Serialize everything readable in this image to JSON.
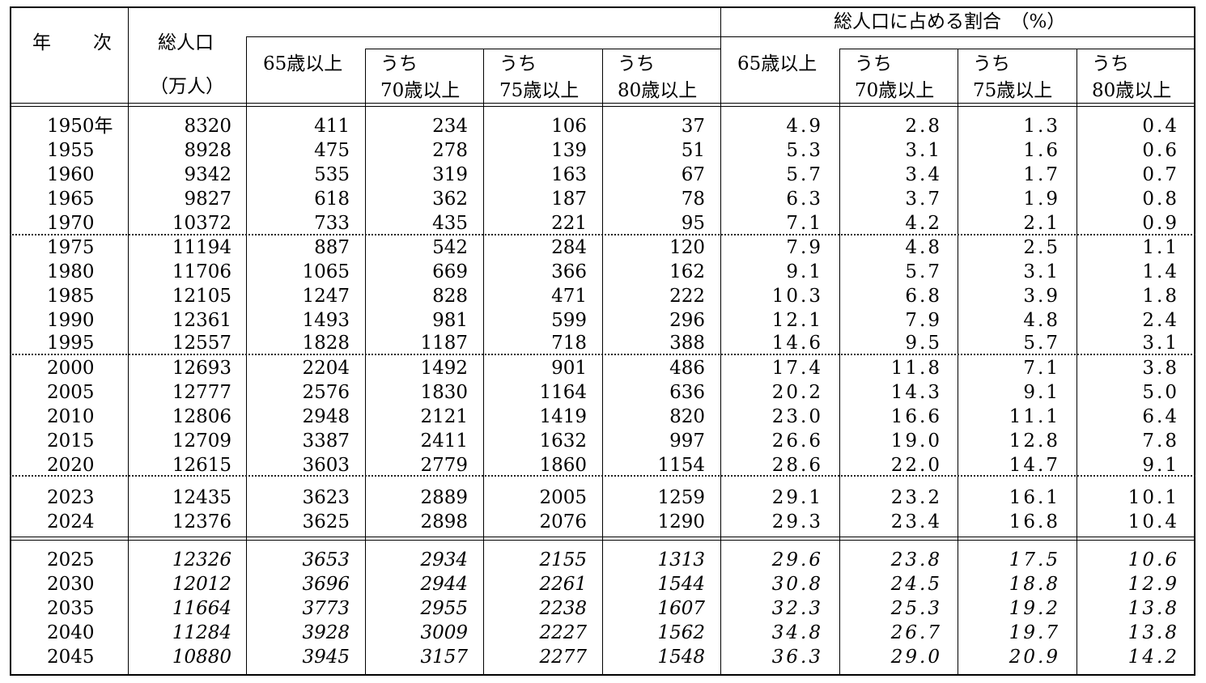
{
  "header": {
    "year_col": "年　　次",
    "total_pop": "総人口",
    "total_pop_unit": "（万人）",
    "ratio_group": "総人口に占める割合　（%）",
    "age65": "65歳以上",
    "uchi": "うち",
    "age70": "70歳以上",
    "age75": "75歳以上",
    "age80": "80歳以上"
  },
  "rows": [
    {
      "year": "1950年",
      "v": [
        "8320",
        "411",
        "234",
        "106",
        "37",
        "4.9",
        "2.8",
        "1.3",
        "0.4"
      ]
    },
    {
      "year": "1955",
      "v": [
        "8928",
        "475",
        "278",
        "139",
        "51",
        "5.3",
        "3.1",
        "1.6",
        "0.6"
      ]
    },
    {
      "year": "1960",
      "v": [
        "9342",
        "535",
        "319",
        "163",
        "67",
        "5.7",
        "3.4",
        "1.7",
        "0.7"
      ]
    },
    {
      "year": "1965",
      "v": [
        "9827",
        "618",
        "362",
        "187",
        "78",
        "6.3",
        "3.7",
        "1.9",
        "0.8"
      ]
    },
    {
      "year": "1970",
      "v": [
        "10372",
        "733",
        "435",
        "221",
        "95",
        "7.1",
        "4.2",
        "2.1",
        "0.9"
      ]
    },
    {
      "year": "1975",
      "v": [
        "11194",
        "887",
        "542",
        "284",
        "120",
        "7.9",
        "4.8",
        "2.5",
        "1.1"
      ]
    },
    {
      "year": "1980",
      "v": [
        "11706",
        "1065",
        "669",
        "366",
        "162",
        "9.1",
        "5.7",
        "3.1",
        "1.4"
      ]
    },
    {
      "year": "1985",
      "v": [
        "12105",
        "1247",
        "828",
        "471",
        "222",
        "10.3",
        "6.8",
        "3.9",
        "1.8"
      ]
    },
    {
      "year": "1990",
      "v": [
        "12361",
        "1493",
        "981",
        "599",
        "296",
        "12.1",
        "7.9",
        "4.8",
        "2.4"
      ]
    },
    {
      "year": "1995",
      "v": [
        "12557",
        "1828",
        "1187",
        "718",
        "388",
        "14.6",
        "9.5",
        "5.7",
        "3.1"
      ]
    },
    {
      "year": "2000",
      "v": [
        "12693",
        "2204",
        "1492",
        "901",
        "486",
        "17.4",
        "11.8",
        "7.1",
        "3.8"
      ]
    },
    {
      "year": "2005",
      "v": [
        "12777",
        "2576",
        "1830",
        "1164",
        "636",
        "20.2",
        "14.3",
        "9.1",
        "5.0"
      ]
    },
    {
      "year": "2010",
      "v": [
        "12806",
        "2948",
        "2121",
        "1419",
        "820",
        "23.0",
        "16.6",
        "11.1",
        "6.4"
      ]
    },
    {
      "year": "2015",
      "v": [
        "12709",
        "3387",
        "2411",
        "1632",
        "997",
        "26.6",
        "19.0",
        "12.8",
        "7.8"
      ]
    },
    {
      "year": "2020",
      "v": [
        "12615",
        "3603",
        "2779",
        "1860",
        "1154",
        "28.6",
        "22.0",
        "14.7",
        "9.1"
      ]
    },
    {
      "year": "2023",
      "v": [
        "12435",
        "3623",
        "2889",
        "2005",
        "1259",
        "29.1",
        "23.2",
        "16.1",
        "10.1"
      ]
    },
    {
      "year": "2024",
      "v": [
        "12376",
        "3625",
        "2898",
        "2076",
        "1290",
        "29.3",
        "23.4",
        "16.8",
        "10.4"
      ]
    },
    {
      "year": "2025",
      "proj": true,
      "v": [
        "12326",
        "3653",
        "2934",
        "2155",
        "1313",
        "29.6",
        "23.8",
        "17.5",
        "10.6"
      ]
    },
    {
      "year": "2030",
      "proj": true,
      "v": [
        "12012",
        "3696",
        "2944",
        "2261",
        "1544",
        "30.8",
        "24.5",
        "18.8",
        "12.9"
      ]
    },
    {
      "year": "2035",
      "proj": true,
      "v": [
        "11664",
        "3773",
        "2955",
        "2238",
        "1607",
        "32.3",
        "25.3",
        "19.2",
        "13.8"
      ]
    },
    {
      "year": "2040",
      "proj": true,
      "v": [
        "11284",
        "3928",
        "3009",
        "2227",
        "1562",
        "34.8",
        "26.7",
        "19.7",
        "13.8"
      ]
    },
    {
      "year": "2045",
      "proj": true,
      "v": [
        "10880",
        "3945",
        "3157",
        "2277",
        "1548",
        "36.3",
        "29.0",
        "20.9",
        "14.2"
      ]
    }
  ]
}
